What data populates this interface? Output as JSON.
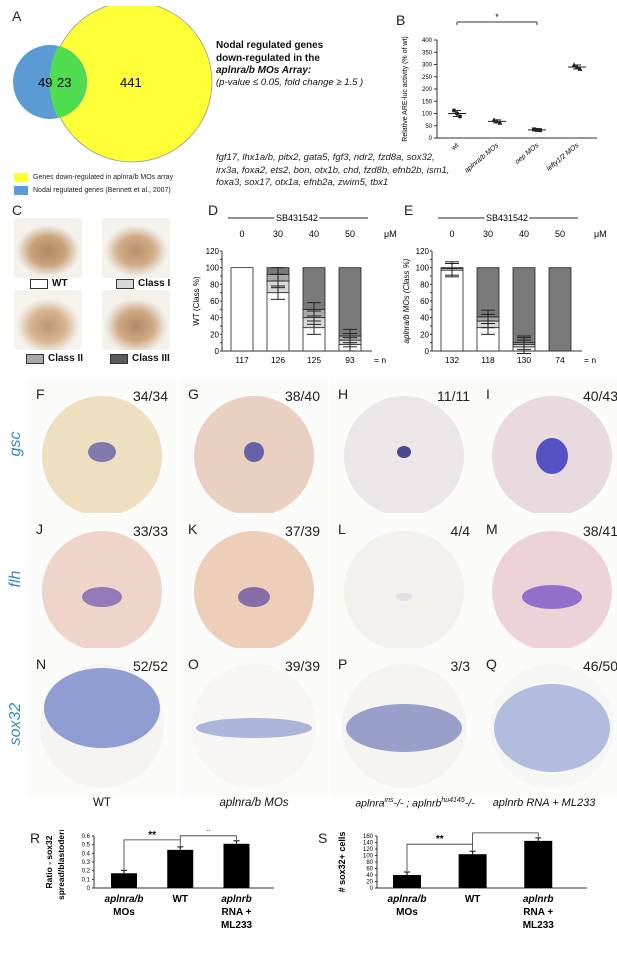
{
  "panels": {
    "A": "A",
    "B": "B",
    "C": "C",
    "D": "D",
    "E": "E",
    "F": "F",
    "G": "G",
    "H": "H",
    "I": "I",
    "J": "J",
    "K": "K",
    "L": "L",
    "M": "M",
    "N": "N",
    "O": "O",
    "P": "P",
    "Q": "Q",
    "R": "R",
    "S": "S"
  },
  "venn": {
    "left_only": "49",
    "overlap": "23",
    "right_only": "441",
    "left_color": "#5b9bd5",
    "right_color": "#ffff38",
    "overlap_color": "#4fdc4f",
    "legend_yellow": "Genes down-regulated in aplnra/b MOs array",
    "legend_blue": "Nodal regulated genes (Bennett et al., 2007)"
  },
  "panel_a_text": {
    "title_line1": "Nodal regulated genes",
    "title_line2": "down-regulated in the",
    "title_line3": "aplnra/b MOs Array:",
    "criteria": "(p-value ≤ 0.05, fold change ≥ 1.5 )",
    "genes": "fgf17, lhx1a/b, pitx2, gata5, fgf3, ndr2, fzd8a, sox32, irx3a, foxa2, ets2, bon, otx1b, chd, fzd8b, efnb2b, ism1, foxa3, sox17, otx1a, efnb2a, zwim5, tbx1"
  },
  "chart_b": {
    "ylabel": "Relative ARE-luc activity (% of wt)",
    "yticks": [
      "0",
      "50",
      "100",
      "150",
      "200",
      "250",
      "300",
      "350",
      "400"
    ],
    "categories": [
      "wt",
      "aplnra/b MOs",
      "oep MOs",
      "lefty1/2 MOs"
    ],
    "sig": "*"
  },
  "panel_c": {
    "wt": "WT",
    "class1": "Class I",
    "class2": "Class II",
    "class3": "Class III"
  },
  "chart_d": {
    "header": "SB431542",
    "doses": [
      "0",
      "30",
      "40",
      "50"
    ],
    "unit": "μM",
    "ylabel": "WT (Class %)",
    "yticks": [
      "0",
      "10",
      "20",
      "30",
      "40",
      "50",
      "60",
      "70",
      "80",
      "90",
      "100",
      "110",
      "120"
    ],
    "n": [
      "117",
      "126",
      "125",
      "93"
    ],
    "n_label": "= n"
  },
  "chart_e": {
    "header": "SB431542",
    "doses": [
      "0",
      "30",
      "40",
      "50"
    ],
    "unit": "μM",
    "ylabel": "aplnra/b MOs (Class %)",
    "yticks": [
      "0",
      "10",
      "20",
      "30",
      "40",
      "50",
      "60",
      "70",
      "80",
      "90",
      "100",
      "110",
      "120"
    ],
    "n": [
      "132",
      "118",
      "130",
      "74"
    ],
    "n_label": "= n"
  },
  "rows": {
    "gsc": "gsc",
    "flh": "flh",
    "sox32": "sox32"
  },
  "counts": {
    "F": "34/34",
    "G": "38/40",
    "H": "11/11",
    "I": "40/43",
    "J": "33/33",
    "K": "37/39",
    "L": "4/4",
    "M": "38/41",
    "N": "52/52",
    "O": "39/39",
    "P": "3/3",
    "Q": "46/50"
  },
  "columns": {
    "c1": "WT",
    "c2": "aplnra/b MOs",
    "c3_a": "aplnra",
    "c3_a_sup": "ins",
    "c3_b": "-/- ; aplnrb",
    "c3_b_sup": "hu4145",
    "c3_c": "-/-",
    "c4": "aplnrb RNA + ML233"
  },
  "chart_r": {
    "ylabel_1": "Ratio - sox32",
    "ylabel_2": "spread/blastoderm",
    "yticks": [
      "0",
      "0.1",
      "0.2",
      "0.3",
      "0.4",
      "0.5",
      "0.6"
    ],
    "cat1_a": "aplnra/b",
    "cat1_b": "MOs",
    "cat2": "WT",
    "cat3_a": "aplnrb",
    "cat3_b": "RNA +",
    "cat3_c": "ML233",
    "sig1": "**",
    "sig2": "*"
  },
  "chart_s": {
    "ylabel": "# sox32+ cells",
    "yticks": [
      "0",
      "20",
      "40",
      "60",
      "80",
      "100",
      "120",
      "140",
      "160"
    ],
    "cat1_a": "aplnra/b",
    "cat1_b": "MOs",
    "cat2": "WT",
    "cat3_a": "aplnrb",
    "cat3_b": "RNA +",
    "cat3_c": "ML233",
    "sig1": "**",
    "sig2": "**"
  },
  "chart_data": [
    {
      "type": "scatter",
      "panel": "B",
      "ylabel": "Relative ARE-luc activity (% of wt)",
      "categories": [
        "wt",
        "aplnra/b MOs",
        "oep MOs",
        "lefty1/2 MOs"
      ],
      "ylim": [
        0,
        400
      ],
      "series": [
        {
          "means": [
            100,
            68,
            33,
            290
          ]
        },
        {
          "points": [
            [
              112,
              100,
              88
            ],
            [
              74,
              68,
              62
            ],
            [
              35,
              33,
              32
            ],
            [
              298,
              290,
              282
            ]
          ]
        }
      ]
    },
    {
      "type": "bar",
      "panel": "D",
      "header": "SB431542",
      "ylabel": "WT (Class %)",
      "categories": [
        "0",
        "30",
        "40",
        "50"
      ],
      "ylim": [
        0,
        120
      ],
      "series": [
        {
          "name": "WT",
          "values": [
            100,
            70,
            28,
            8
          ]
        },
        {
          "name": "Class I",
          "values": [
            0,
            14,
            12,
            5
          ]
        },
        {
          "name": "Class II",
          "values": [
            0,
            8,
            10,
            5
          ]
        },
        {
          "name": "Class III",
          "values": [
            0,
            8,
            50,
            82
          ]
        }
      ],
      "n": [
        117,
        126,
        125,
        93
      ]
    },
    {
      "type": "bar",
      "panel": "E",
      "header": "SB431542",
      "ylabel": "aplnra/b MOs (Class %)",
      "categories": [
        "0",
        "30",
        "40",
        "50"
      ],
      "ylim": [
        0,
        120
      ],
      "series": [
        {
          "name": "WT",
          "values": [
            97,
            28,
            5,
            0
          ]
        },
        {
          "name": "Class I",
          "values": [
            2,
            8,
            3,
            0
          ]
        },
        {
          "name": "Class II",
          "values": [
            1,
            5,
            2,
            0
          ]
        },
        {
          "name": "Class III",
          "values": [
            0,
            59,
            90,
            100
          ]
        }
      ],
      "n": [
        132,
        118,
        130,
        74
      ]
    },
    {
      "type": "bar",
      "panel": "R",
      "categories": [
        "aplnra/b MOs",
        "WT",
        "aplnrb RNA + ML233"
      ],
      "values": [
        0.17,
        0.44,
        0.51
      ],
      "ylim": [
        0,
        0.6
      ]
    },
    {
      "type": "bar",
      "panel": "S",
      "categories": [
        "aplnra/b MOs",
        "WT",
        "aplnrb RNA + ML233"
      ],
      "values": [
        40,
        104,
        145
      ],
      "ylim": [
        0,
        160
      ]
    }
  ]
}
